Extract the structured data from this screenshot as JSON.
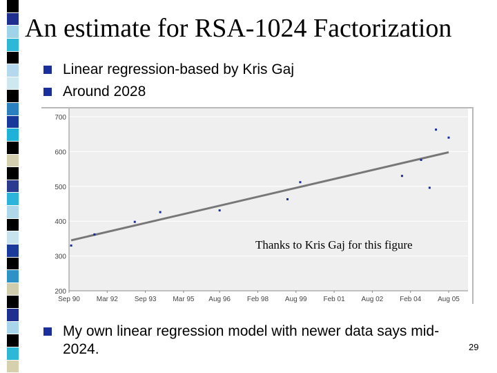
{
  "slide": {
    "title": "An estimate for RSA-1024 Factorization",
    "bullets": [
      "Linear regression-based by Kris Gaj",
      "Around 2028"
    ],
    "bottom_bullet": "My own linear regression model with newer data says mid-2024.",
    "credit": "Thanks to Kris Gaj for this figure",
    "page_number": "29",
    "strip_colors": [
      "#000000",
      "#1f2f8f",
      "#9ed3ea",
      "#2db8d8",
      "#000000",
      "#b4d9ee",
      "#cfe8ef",
      "#000000",
      "#2b80c0",
      "#173a9a",
      "#1fb2d8",
      "#000000",
      "#d4cfae",
      "#000000",
      "#2b3b8f",
      "#2eb4d8",
      "#aed7ea",
      "#000000",
      "#c7e4ee",
      "#1a3b9a",
      "#000000",
      "#2f92c6",
      "#d0cdaf",
      "#000000",
      "#1f2f8f",
      "#a9d5ea",
      "#000000",
      "#2db8d8",
      "#d6d0ae"
    ],
    "bullet_color": "#1a2f9b"
  },
  "chart_data": {
    "type": "scatter",
    "title": "",
    "xlabel": "",
    "ylabel": "",
    "x_tick_labels": [
      "Sep 90",
      "Mar 92",
      "Sep 93",
      "Mar 95",
      "Aug 96",
      "Feb 98",
      "Aug 99",
      "Feb 01",
      "Aug 02",
      "Feb 04",
      "Aug 05"
    ],
    "y_ticks": [
      200,
      300,
      400,
      500,
      600,
      700
    ],
    "ylim": [
      200,
      700
    ],
    "xlim": [
      "Sep 90",
      "Aug 05"
    ],
    "grid": true,
    "series": [
      {
        "marker_color": "#1a2aa0",
        "points": [
          {
            "x": "Oct 90",
            "y": 330
          },
          {
            "x": "Sep 91",
            "y": 362
          },
          {
            "x": "Apr 93",
            "y": 398
          },
          {
            "x": "Apr 94",
            "y": 426
          },
          {
            "x": "Aug 96",
            "y": 431
          },
          {
            "x": "Apr 99",
            "y": 463
          },
          {
            "x": "Oct 99",
            "y": 512
          },
          {
            "x": "Oct 03",
            "y": 530
          },
          {
            "x": "Jul 04",
            "y": 576
          },
          {
            "x": "Nov 04",
            "y": 496
          },
          {
            "x": "Feb 05",
            "y": 663
          },
          {
            "x": "Aug 05",
            "y": 640
          }
        ]
      }
    ],
    "trend_line": {
      "color": "#777777",
      "start": {
        "x": "Oct 90",
        "y": 345
      },
      "end": {
        "x": "Aug 05",
        "y": 598
      }
    }
  }
}
